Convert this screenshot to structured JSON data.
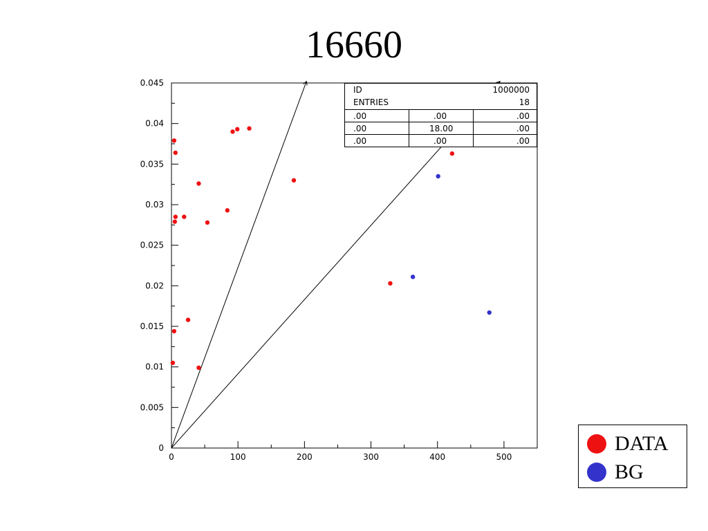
{
  "title": "16660",
  "colors": {
    "data": "#ee1111",
    "bg": "#3333cc",
    "axis": "#000000"
  },
  "legend": {
    "items": [
      {
        "label": "DATA",
        "color": "#ee1111"
      },
      {
        "label": "BG",
        "color": "#3333cc"
      }
    ]
  },
  "stats_box": {
    "id_label": "ID",
    "id_value": "1000000",
    "entries_label": "ENTRIES",
    "entries_value": "18",
    "rows": [
      [
        ".00",
        ".00",
        ".00"
      ],
      [
        ".00",
        "18.00",
        ".00"
      ],
      [
        ".00",
        ".00",
        ".00"
      ]
    ]
  },
  "chart_data": {
    "type": "scatter",
    "title": "",
    "xlabel": "",
    "ylabel": "",
    "xlim": [
      0,
      550
    ],
    "ylim": [
      0,
      0.045
    ],
    "x_ticks": [
      "0",
      "100",
      "200",
      "300",
      "400",
      "500"
    ],
    "x_tick_values": [
      0,
      100,
      200,
      300,
      400,
      500
    ],
    "y_ticks": [
      "0",
      "0.005",
      "0.01",
      "0.015",
      "0.02",
      "0.025",
      "0.03",
      "0.035",
      "0.04",
      "0.045"
    ],
    "y_tick_values": [
      0,
      0.005,
      0.01,
      0.015,
      0.02,
      0.025,
      0.03,
      0.035,
      0.04,
      0.045
    ],
    "grid": false,
    "lines": [
      {
        "x": [
          0,
          203
        ],
        "y": [
          0,
          0.0452
        ]
      },
      {
        "x": [
          0,
          494
        ],
        "y": [
          0,
          0.0452
        ]
      }
    ],
    "series": [
      {
        "name": "DATA",
        "color": "#ee1111",
        "points": [
          [
            2,
            0.0105
          ],
          [
            4,
            0.0144
          ],
          [
            4,
            0.0379
          ],
          [
            6,
            0.0364
          ],
          [
            5,
            0.0279
          ],
          [
            6,
            0.0285
          ],
          [
            19,
            0.0285
          ],
          [
            25,
            0.0158
          ],
          [
            41,
            0.0326
          ],
          [
            41,
            0.0099
          ],
          [
            54,
            0.0278
          ],
          [
            84,
            0.0293
          ],
          [
            92,
            0.039
          ],
          [
            99,
            0.0393
          ],
          [
            117,
            0.0394
          ],
          [
            184,
            0.033
          ],
          [
            329,
            0.0203
          ],
          [
            422,
            0.0363
          ]
        ]
      },
      {
        "name": "BG",
        "color": "#3333cc",
        "points": [
          [
            363,
            0.0211
          ],
          [
            401,
            0.0335
          ],
          [
            478,
            0.0167
          ]
        ]
      }
    ]
  }
}
